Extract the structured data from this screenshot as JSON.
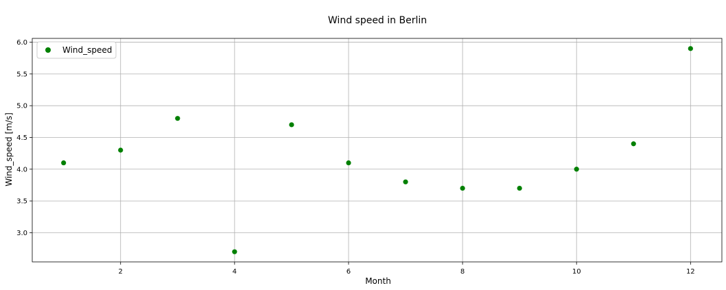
{
  "chart_data": {
    "type": "scatter",
    "title": "Wind speed in Berlin",
    "xlabel": "Month",
    "ylabel": "Wind_speed [m/s]",
    "xlim": [
      0.45,
      12.55
    ],
    "ylim": [
      2.54,
      6.06
    ],
    "xticks": [
      2,
      4,
      6,
      8,
      10,
      12
    ],
    "yticks": [
      3.0,
      3.5,
      4.0,
      4.5,
      5.0,
      5.5,
      6.0
    ],
    "grid": true,
    "legend_position": "top-left",
    "series": [
      {
        "name": "Wind_speed",
        "color": "#008000",
        "x": [
          1,
          2,
          3,
          4,
          5,
          6,
          7,
          8,
          9,
          10,
          11,
          12
        ],
        "y": [
          4.1,
          4.3,
          4.8,
          2.7,
          4.7,
          4.1,
          3.8,
          3.7,
          3.7,
          4.0,
          4.4,
          5.9
        ]
      }
    ]
  }
}
